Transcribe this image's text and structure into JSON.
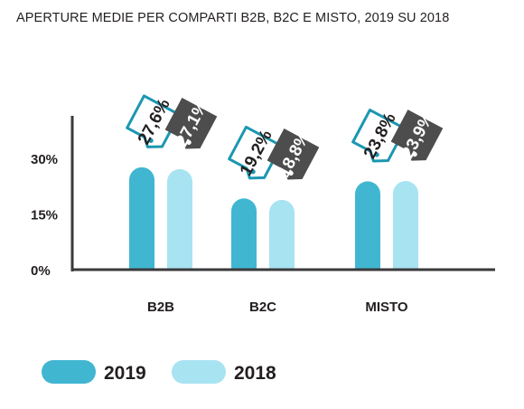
{
  "chart_data": {
    "type": "bar",
    "title": "APERTURE MEDIE PER COMPARTI B2B, B2C E MISTO, 2019 SU 2018",
    "categories": [
      "B2B",
      "B2C",
      "MISTO"
    ],
    "series": [
      {
        "name": "2019",
        "values": [
          27.6,
          19.2,
          23.8
        ],
        "labels": [
          "27,6%",
          "19,2%",
          "23,8%"
        ],
        "color": "#41b6d1"
      },
      {
        "name": "2018",
        "values": [
          27.1,
          18.8,
          23.9
        ],
        "labels": [
          "27,1%",
          "18,8%",
          "23,9%"
        ],
        "color": "#a8e3f2"
      }
    ],
    "yticks": [
      {
        "value": 0,
        "label": "0%"
      },
      {
        "value": 15,
        "label": "15%"
      },
      {
        "value": 30,
        "label": "30%"
      }
    ],
    "label_colors": {
      "2019": "#1b97b1",
      "2018": "#4d4d4d"
    },
    "legend_position": "bottom-left",
    "grid": false
  }
}
